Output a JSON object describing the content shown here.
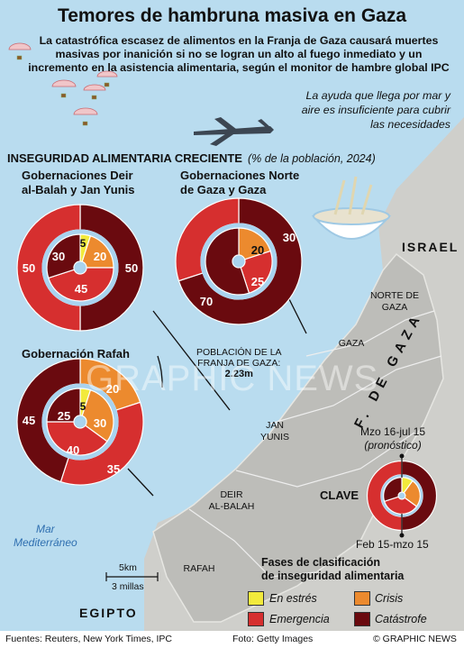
{
  "title": "Temores de hambruna masiva en Gaza",
  "intro": "La catastrófica escasez de alimentos en la Franja de Gaza causará muertes masivas por inanición si no se logran un alto al fuego  inmediato y un incremento en la asistencia alimentaria, según el monitor de hambre global IPC",
  "aid_note": "La ayuda que llega por mar y aire es insuficiente para cubrir las necesidades",
  "section_title": "INSEGURIDAD ALIMENTARIA CRECIENTE",
  "section_subtitle": "(% de la población, 2024)",
  "governorates": [
    {
      "name_line1": "Gobernaciones Deir",
      "name_line2": "al-Balah y Jan Yunis",
      "outer": {
        "catastrofe": "50",
        "emergencia": "50"
      },
      "inner": {
        "estres": "5",
        "crisis": "20",
        "emergencia": "45",
        "catastrofe": "30"
      }
    },
    {
      "name_line1": "Gobernaciones Norte",
      "name_line2": "de Gaza y Gaza",
      "outer": {
        "catastrofe": "70",
        "emergencia": "30"
      },
      "inner": {
        "crisis": "20",
        "emergencia": "25"
      }
    },
    {
      "name_line1": "Gobernación Rafah",
      "name_line2": "",
      "outer": {
        "catastrofe": "45",
        "emergencia": "35",
        "crisis": "20"
      },
      "inner": {
        "estres": "5",
        "crisis": "30",
        "emergencia": "40",
        "catastrofe": "25"
      }
    }
  ],
  "chart_data": [
    {
      "type": "pie",
      "title": "Gobernaciones Deir al-Balah y Jan Yunis",
      "series": [
        {
          "name": "Feb 15-mzo 15",
          "categories": [
            "Catástrofe",
            "Emergencia"
          ],
          "values": [
            50,
            50
          ]
        },
        {
          "name": "Mzo 16-jul 15 (pronóstico)",
          "categories": [
            "En estrés",
            "Crisis",
            "Emergencia",
            "Catástrofe"
          ],
          "values": [
            5,
            20,
            45,
            30
          ]
        }
      ]
    },
    {
      "type": "pie",
      "title": "Gobernaciones Norte de Gaza y Gaza",
      "series": [
        {
          "name": "Feb 15-mzo 15",
          "categories": [
            "Catástrofe",
            "Emergencia"
          ],
          "values": [
            70,
            30
          ]
        },
        {
          "name": "Mzo 16-jul 15 (pronóstico)",
          "categories": [
            "Crisis",
            "Emergencia",
            "Catástrofe"
          ],
          "values": [
            20,
            25,
            55
          ]
        }
      ]
    },
    {
      "type": "pie",
      "title": "Gobernación Rafah",
      "series": [
        {
          "name": "Feb 15-mzo 15",
          "categories": [
            "Crisis",
            "Emergencia",
            "Catástrofe"
          ],
          "values": [
            20,
            35,
            45
          ]
        },
        {
          "name": "Mzo 16-jul 15 (pronóstico)",
          "categories": [
            "En estrés",
            "Crisis",
            "Emergencia",
            "Catástrofe"
          ],
          "values": [
            5,
            30,
            40,
            25
          ]
        }
      ]
    }
  ],
  "map": {
    "israel": "ISRAEL",
    "egipto": "EGIPTO",
    "mar_line1": "Mar",
    "mar_line2": "Mediterráneo",
    "franja": "F. DE GAZA",
    "norte_line1": "NORTE DE",
    "norte_line2": "GAZA",
    "gaza": "GAZA",
    "jan_line1": "JAN",
    "jan_line2": "YUNIS",
    "deir_line1": "DEIR",
    "deir_line2": "AL-BALAH",
    "rafah": "RAFAH",
    "population_line1": "POBLACIÓN DE LA",
    "population_line2": "FRANJA DE GAZA:",
    "population_value": "2.23m",
    "scale_km": "5km",
    "scale_mi": "3 millas"
  },
  "key": {
    "clave": "CLAVE",
    "forecast_period": "Mzo 16-jul 15",
    "forecast_label": "(pronóstico)",
    "current_period": "Feb 15-mzo 15"
  },
  "legend": {
    "title_line1": "Fases de clasificación",
    "title_line2": "de inseguridad alimentaria",
    "items": [
      {
        "label": "En estrés",
        "color": "#f2ea3c"
      },
      {
        "label": "Crisis",
        "color": "#ec8a2e"
      },
      {
        "label": "Emergencia",
        "color": "#d62f2f"
      },
      {
        "label": "Catástrofe",
        "color": "#6a0a0f"
      }
    ]
  },
  "watermark": "GRAPHIC NEWS",
  "footer": {
    "sources": "Fuentes: Reuters, New York Times, IPC",
    "photo": "Foto: Getty Images",
    "credit": "© GRAPHIC NEWS"
  },
  "colors": {
    "sea": "#b9dcef",
    "land": "#cfcfcb",
    "strip": "#bcbcb8",
    "ring": "#a9d3ef"
  }
}
